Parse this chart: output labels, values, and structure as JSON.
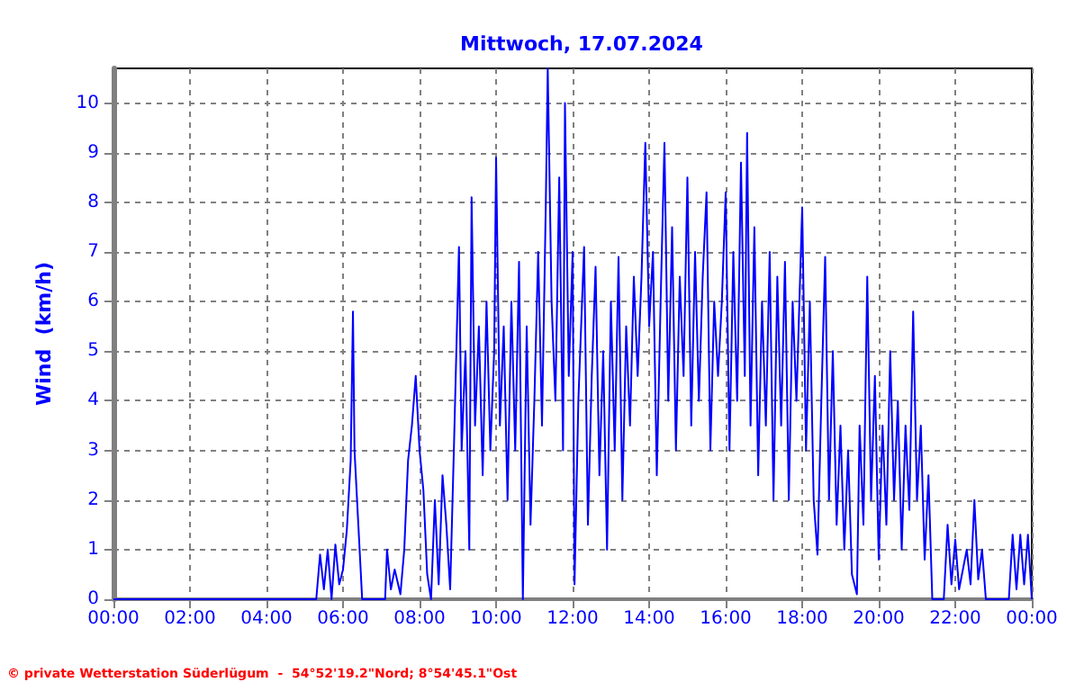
{
  "chart_data": {
    "type": "line",
    "title": "Mittwoch, 17.07.2024",
    "ylabel": "Wind  (km/h)",
    "annotations": [
      "© private Wetterstation Süderlügum  -  54°52'19.2\"Nord; 8°54'45.1\"Ost"
    ],
    "color": "#0000ff",
    "marker": "none",
    "grid": true,
    "xlim": [
      0,
      24
    ],
    "ylim": [
      0,
      10.7
    ],
    "xticks": [
      {
        "value": 0,
        "label": "00:00"
      },
      {
        "value": 2,
        "label": "02:00"
      },
      {
        "value": 4,
        "label": "04:00"
      },
      {
        "value": 6,
        "label": "06:00"
      },
      {
        "value": 8,
        "label": "08:00"
      },
      {
        "value": 10,
        "label": "10:00"
      },
      {
        "value": 12,
        "label": "12:00"
      },
      {
        "value": 14,
        "label": "14:00"
      },
      {
        "value": 16,
        "label": "16:00"
      },
      {
        "value": 18,
        "label": "18:00"
      },
      {
        "value": 20,
        "label": "20:00"
      },
      {
        "value": 22,
        "label": "22:00"
      },
      {
        "value": 24,
        "label": "00:00"
      }
    ],
    "yticks": [
      0,
      1,
      2,
      3,
      4,
      5,
      6,
      7,
      8,
      9,
      10
    ],
    "x": [
      0,
      5.3,
      5.4,
      5.5,
      5.6,
      5.7,
      5.8,
      5.9,
      6.0,
      6.1,
      6.2,
      6.26,
      6.3,
      6.4,
      6.5,
      7.1,
      7.15,
      7.25,
      7.35,
      7.5,
      7.6,
      7.7,
      7.8,
      7.9,
      8.0,
      8.1,
      8.2,
      8.3,
      8.4,
      8.5,
      8.6,
      8.7,
      8.8,
      8.9,
      9.03,
      9.1,
      9.2,
      9.3,
      9.36,
      9.45,
      9.55,
      9.65,
      9.75,
      9.85,
      9.95,
      10.0,
      10.1,
      10.2,
      10.3,
      10.4,
      10.5,
      10.6,
      10.7,
      10.8,
      10.9,
      11.0,
      11.1,
      11.2,
      11.3,
      11.35,
      11.45,
      11.55,
      11.65,
      11.75,
      11.8,
      11.9,
      12.0,
      12.05,
      12.15,
      12.3,
      12.4,
      12.5,
      12.6,
      12.7,
      12.8,
      12.9,
      13.0,
      13.1,
      13.2,
      13.3,
      13.4,
      13.5,
      13.6,
      13.7,
      13.8,
      13.9,
      14.0,
      14.1,
      14.2,
      14.3,
      14.4,
      14.5,
      14.6,
      14.7,
      14.8,
      14.9,
      15.0,
      15.1,
      15.2,
      15.3,
      15.4,
      15.5,
      15.6,
      15.7,
      15.8,
      15.9,
      16.0,
      16.1,
      16.2,
      16.3,
      16.4,
      16.5,
      16.56,
      16.65,
      16.75,
      16.85,
      16.95,
      17.05,
      17.15,
      17.25,
      17.35,
      17.45,
      17.55,
      17.65,
      17.75,
      17.85,
      18.0,
      18.1,
      18.2,
      18.3,
      18.4,
      18.5,
      18.6,
      18.7,
      18.8,
      18.9,
      19.0,
      19.1,
      19.2,
      19.3,
      19.43,
      19.5,
      19.6,
      19.7,
      19.8,
      19.9,
      20.0,
      20.1,
      20.2,
      20.3,
      20.4,
      20.5,
      20.6,
      20.7,
      20.8,
      20.9,
      21.0,
      21.1,
      21.2,
      21.3,
      21.4,
      21.7,
      21.8,
      21.9,
      22.0,
      22.1,
      22.3,
      22.4,
      22.5,
      22.6,
      22.7,
      22.8,
      23.4,
      23.5,
      23.6,
      23.7,
      23.8,
      23.9,
      24.0
    ],
    "values": [
      0,
      0,
      0.9,
      0.2,
      1.0,
      0,
      1.1,
      0.3,
      0.6,
      1.4,
      2.8,
      5.8,
      3.0,
      1.5,
      0,
      0,
      1.0,
      0.2,
      0.6,
      0.1,
      1.0,
      2.8,
      3.5,
      4.5,
      3.0,
      2.2,
      0.5,
      0,
      2.0,
      0.3,
      2.5,
      1.5,
      0.2,
      3.1,
      7.1,
      3.0,
      5.0,
      1.0,
      8.1,
      3.5,
      5.5,
      2.5,
      6.0,
      3.0,
      5.0,
      8.9,
      3.5,
      5.5,
      2.0,
      6.0,
      3.0,
      6.8,
      0,
      5.5,
      1.5,
      4.0,
      7.0,
      3.5,
      8.0,
      10.7,
      6.0,
      4.0,
      8.5,
      3.0,
      10.0,
      4.5,
      7.0,
      0.3,
      4.0,
      7.1,
      1.5,
      4.5,
      6.7,
      2.5,
      5.0,
      1.0,
      6.0,
      3.0,
      6.9,
      2.0,
      5.5,
      3.5,
      6.5,
      4.5,
      6.5,
      9.2,
      5.5,
      7.0,
      2.5,
      6.0,
      9.2,
      4.0,
      7.5,
      3.0,
      6.5,
      4.5,
      8.5,
      3.5,
      7.0,
      4.0,
      6.5,
      8.2,
      3.0,
      6.0,
      4.5,
      6.0,
      8.2,
      3.0,
      7.0,
      4.0,
      8.8,
      4.5,
      9.4,
      3.5,
      7.5,
      2.5,
      6.0,
      3.5,
      7.0,
      2.0,
      6.5,
      3.5,
      6.8,
      2.0,
      6.0,
      4.0,
      7.9,
      3.0,
      6.0,
      2.0,
      0.9,
      4.0,
      6.9,
      2.0,
      5.0,
      1.5,
      3.5,
      1.0,
      3.0,
      0.5,
      0.1,
      3.5,
      1.5,
      6.5,
      2.0,
      4.5,
      0.8,
      3.5,
      1.5,
      5.0,
      2.0,
      4.0,
      1.0,
      3.5,
      1.8,
      5.8,
      2.0,
      3.5,
      0.8,
      2.5,
      0,
      0,
      1.5,
      0.3,
      1.2,
      0.2,
      1.0,
      0.3,
      2.0,
      0.4,
      1.0,
      0,
      0,
      1.3,
      0.2,
      1.3,
      0.3,
      1.3,
      0
    ]
  }
}
